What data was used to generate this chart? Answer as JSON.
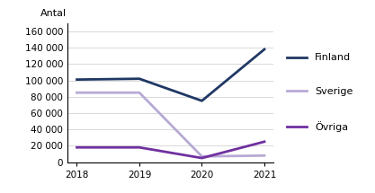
{
  "years": [
    2018,
    2019,
    2020,
    2021
  ],
  "finland": [
    101000,
    102000,
    75000,
    138000
  ],
  "sverige": [
    85000,
    85000,
    7000,
    8000
  ],
  "ovriga": [
    18000,
    18000,
    5000,
    25000
  ],
  "finland_color": "#1f3864",
  "sverige_color": "#b8a9d4",
  "ovriga_color": "#7030a0",
  "ylabel": "Antal",
  "ylim": [
    0,
    170000
  ],
  "yticks": [
    0,
    20000,
    40000,
    60000,
    80000,
    100000,
    120000,
    140000,
    160000
  ],
  "legend_finland": "Finland",
  "legend_sverige": "Sverige",
  "legend_ovriga": "Övriga",
  "linewidth": 2.0
}
